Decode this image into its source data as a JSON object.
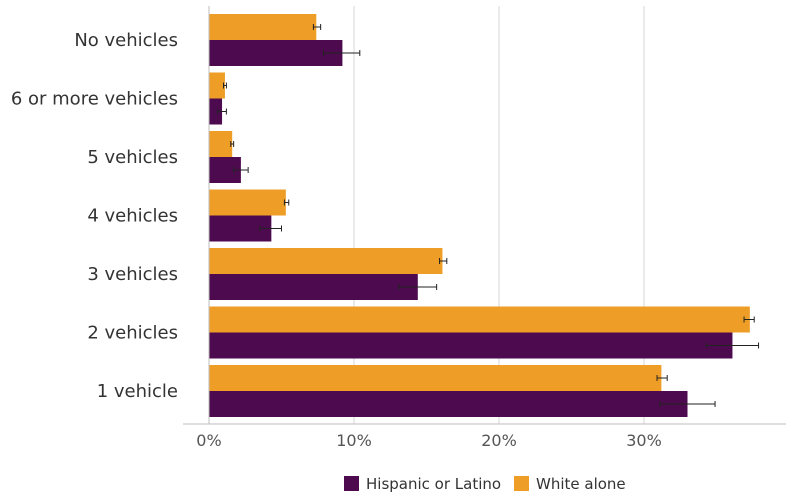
{
  "chart_data": {
    "type": "bar",
    "orientation": "horizontal",
    "categories": [
      "No vehicles",
      "6 or more vehicles",
      "5 vehicles",
      "4 vehicles",
      "3 vehicles",
      "2 vehicles",
      "1 vehicle"
    ],
    "series": [
      {
        "name": "White alone",
        "color": "#ee9e27",
        "values": [
          7.4,
          1.1,
          1.6,
          5.3,
          16.1,
          37.3,
          31.2
        ],
        "error_low": [
          7.2,
          1.0,
          1.5,
          5.2,
          15.9,
          36.9,
          30.9
        ],
        "error_high": [
          7.7,
          1.2,
          1.7,
          5.5,
          16.4,
          37.6,
          31.6
        ]
      },
      {
        "name": "Hispanic or Latino",
        "color": "#4d0a4f",
        "values": [
          9.2,
          0.9,
          2.2,
          4.3,
          14.4,
          36.1,
          33.0
        ],
        "error_low": [
          7.9,
          0.6,
          1.7,
          3.5,
          13.1,
          34.3,
          31.1
        ],
        "error_high": [
          10.4,
          1.2,
          2.7,
          5.0,
          15.7,
          37.9,
          34.9
        ]
      }
    ],
    "xlim": [
      0,
      40
    ],
    "xticks": [
      0,
      10,
      20,
      30
    ],
    "xtick_labels": [
      "0%",
      "10%",
      "20%",
      "30%"
    ],
    "grid": true,
    "legend": {
      "position": "bottom-center",
      "items": [
        "Hispanic or Latino",
        "White alone"
      ]
    },
    "title": "",
    "xlabel": "",
    "ylabel": ""
  }
}
